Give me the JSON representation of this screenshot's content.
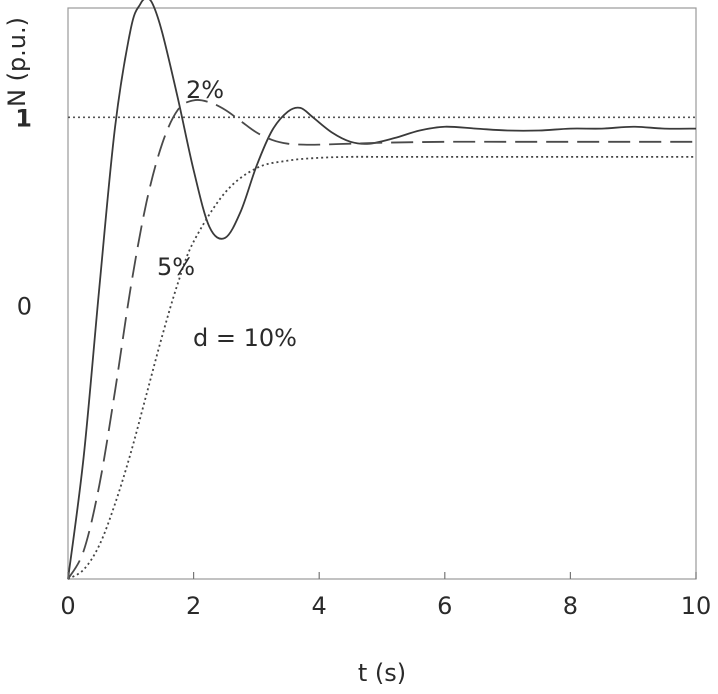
{
  "chart_data": {
    "type": "line",
    "xlabel": "t (s)",
    "ylabel": "N (p.u.)",
    "xlim": [
      0,
      10
    ],
    "ylim": [
      -1.45,
      1.58
    ],
    "x_ticks": [
      0,
      2,
      4,
      6,
      8,
      10
    ],
    "y_ticks": [
      {
        "value": 1,
        "label": "1",
        "bold": true
      },
      {
        "value": 0,
        "label": "0",
        "bold": false
      }
    ],
    "reference_line": {
      "y": 1,
      "style": "dotted"
    },
    "grid": false,
    "legend": "none",
    "series": [
      {
        "name": "2%",
        "style": "solid",
        "x": [
          0,
          0.25,
          0.5,
          0.75,
          1.0,
          1.15,
          1.25,
          1.35,
          1.5,
          1.75,
          2.0,
          2.25,
          2.5,
          2.75,
          3.0,
          3.25,
          3.5,
          3.7,
          3.9,
          4.2,
          4.5,
          4.8,
          5.2,
          5.6,
          6.0,
          6.5,
          7.0,
          7.5,
          8.0,
          8.5,
          9.0,
          9.5,
          10.0
        ],
        "y": [
          -1.45,
          -0.8,
          0.1,
          0.95,
          1.47,
          1.6,
          1.63,
          1.6,
          1.45,
          1.1,
          0.72,
          0.42,
          0.36,
          0.5,
          0.74,
          0.93,
          1.03,
          1.05,
          1.0,
          0.92,
          0.87,
          0.86,
          0.89,
          0.93,
          0.95,
          0.94,
          0.93,
          0.93,
          0.94,
          0.94,
          0.95,
          0.94,
          0.94
        ]
      },
      {
        "name": "5%",
        "style": "dashed",
        "x": [
          0,
          0.25,
          0.5,
          0.75,
          1.0,
          1.25,
          1.5,
          1.75,
          2.0,
          2.25,
          2.5,
          2.75,
          3.0,
          3.25,
          3.5,
          3.75,
          4.0,
          4.5,
          5.0,
          6.0,
          7.0,
          8.0,
          9.0,
          10.0
        ],
        "y": [
          -1.45,
          -1.3,
          -0.95,
          -0.45,
          0.1,
          0.55,
          0.86,
          1.04,
          1.09,
          1.08,
          1.04,
          0.98,
          0.92,
          0.88,
          0.86,
          0.855,
          0.855,
          0.86,
          0.865,
          0.87,
          0.87,
          0.87,
          0.87,
          0.87
        ]
      },
      {
        "name": "d = 10%",
        "style": "dotted",
        "x": [
          0,
          0.25,
          0.5,
          0.75,
          1.0,
          1.25,
          1.5,
          1.75,
          2.0,
          2.5,
          3.0,
          3.5,
          4.0,
          4.5,
          5.0,
          6.0,
          7.0,
          8.0,
          9.0,
          10.0
        ],
        "y": [
          -1.45,
          -1.4,
          -1.27,
          -1.05,
          -0.78,
          -0.47,
          -0.16,
          0.12,
          0.34,
          0.6,
          0.73,
          0.77,
          0.785,
          0.79,
          0.79,
          0.79,
          0.79,
          0.79,
          0.79,
          0.79
        ]
      }
    ],
    "annotations": [
      {
        "text": "2%",
        "series": "2%"
      },
      {
        "text": "5%",
        "series": "5%"
      },
      {
        "text": "d = 10%",
        "series": "d = 10%"
      }
    ]
  }
}
